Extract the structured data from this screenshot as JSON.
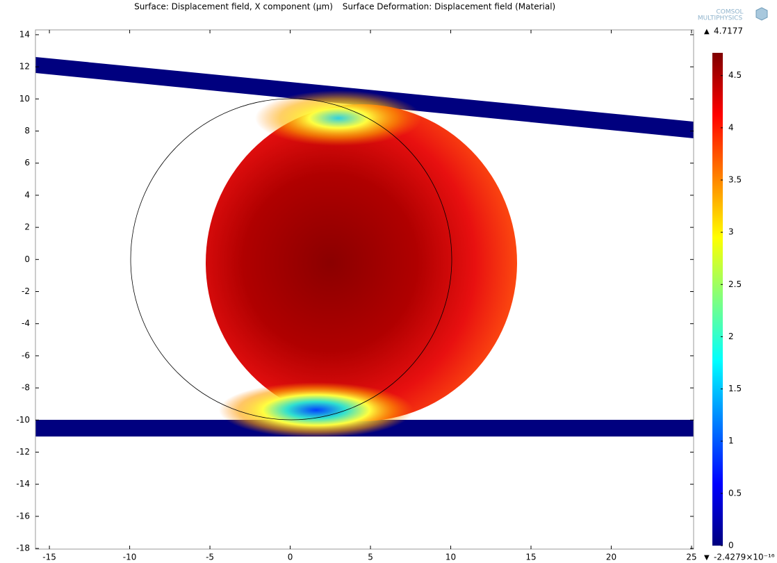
{
  "chart_data": {
    "type": "surface",
    "title": "Surface: Displacement field, X component (µm)",
    "subtitle": "Surface Deformation: Displacement field (Material)",
    "logo": [
      "COMSOL",
      "MULTIPHYSICS"
    ],
    "xlim": [
      -15.87,
      25.13
    ],
    "ylim": [
      -18.04,
      14.3
    ],
    "xticks": [
      -15,
      -10,
      -5,
      0,
      5,
      10,
      15,
      20,
      25
    ],
    "yticks": [
      -18,
      -16,
      -14,
      -12,
      -10,
      -8,
      -6,
      -4,
      -2,
      0,
      2,
      4,
      6,
      8,
      10,
      12,
      14
    ],
    "colorbar": {
      "lim": [
        -2.4279e-16,
        4.7177
      ],
      "ticks": [
        0,
        0.5,
        1,
        1.5,
        2,
        2.5,
        3,
        3.5,
        4,
        4.5
      ],
      "max": 4.7177,
      "min": {
        "value": -2.4279e-16,
        "label": "-2.4279×10⁻¹⁶"
      }
    }
  }
}
